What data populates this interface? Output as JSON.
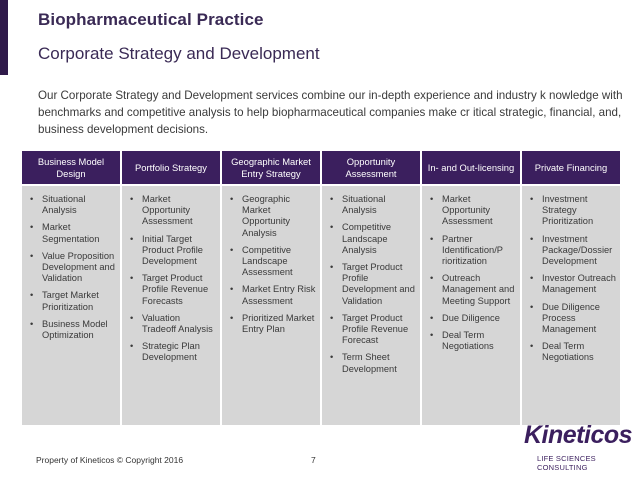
{
  "header": {
    "title": "Biopharmaceutical Practice",
    "subtitle": "Corporate Strategy and Development"
  },
  "intro": "Our Corporate Strategy and Development services combine our in-depth experience and industry  k nowledge with benchmarks and competitive analysis to help biopharmaceutical companies make  cr itical strategic, financial, and, business development decisions.",
  "columns": [
    {
      "heading": "Business Model Design",
      "items": [
        "Situational Analysis",
        "Market Segmentation",
        "Value Proposition Development and Validation",
        "Target Market Prioritization",
        "Business Model Optimization"
      ]
    },
    {
      "heading": "Portfolio Strategy",
      "items": [
        "Market Opportunity Assessment",
        "Initial Target Product Profile Development",
        "Target Product Profile Revenue Forecasts",
        "Valuation Tradeoff Analysis",
        "Strategic Plan Development"
      ]
    },
    {
      "heading": "Geographic Market Entry Strategy",
      "items": [
        "Geographic Market Opportunity Analysis",
        "Competitive Landscape Assessment",
        "Market Entry Risk Assessment",
        "Prioritized Market Entry Plan"
      ]
    },
    {
      "heading": "Opportunity Assessment",
      "items": [
        "Situational Analysis",
        "Competitive Landscape Analysis",
        "Target Product Profile Development and Validation",
        "Target Product Profile Revenue Forecast",
        "Term Sheet Development"
      ]
    },
    {
      "heading": "In- and Out-licensing",
      "items": [
        "Market Opportunity Assessment",
        "Partner Identification/P rioritization",
        "Outreach Management and Meeting Support",
        "Due Diligence",
        "Deal Term Negotiations"
      ]
    },
    {
      "heading": "Private Financing",
      "items": [
        "Investment Strategy Prioritization",
        "Investment Package/Dossier Development",
        "Investor Outreach Management",
        "Due Diligence Process Management",
        "Deal Term Negotiations"
      ]
    }
  ],
  "footer": {
    "copyright": "Property of Kineticos © Copyright 2016",
    "page_number": "7"
  },
  "logo": {
    "brand": "Kineticos",
    "tagline": "LIFE SCIENCES CONSULTING",
    "color": "#3b1f5e"
  },
  "colors": {
    "accent": "#2f1a4a",
    "header_bg": "#3b1f5e",
    "body_bg": "#d6d6d6"
  }
}
